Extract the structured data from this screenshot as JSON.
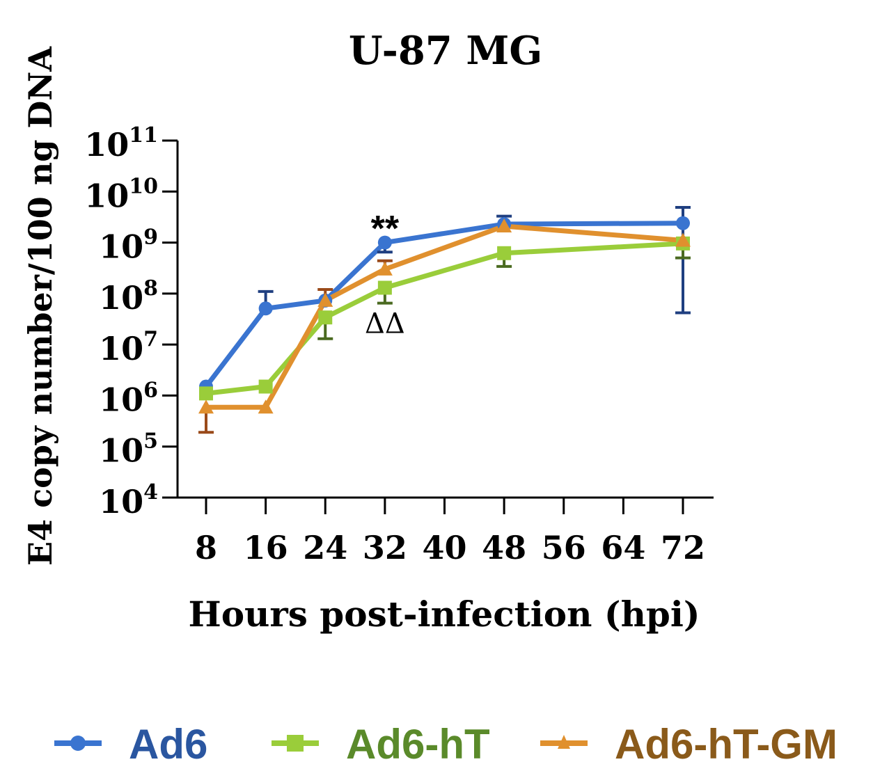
{
  "chart_data": {
    "type": "line",
    "title": "U-87 MG",
    "xlabel": "Hours post-infection (hpi)",
    "ylabel": "E4 copy number/100 ng DNA",
    "yscale": "log",
    "ylim": [
      10000,
      100000000000
    ],
    "xlim": [
      8,
      72
    ],
    "xticks": [
      8,
      16,
      24,
      32,
      40,
      48,
      56,
      64,
      72
    ],
    "yticks": [
      {
        "base": "10",
        "exp": "4"
      },
      {
        "base": "10",
        "exp": "5"
      },
      {
        "base": "10",
        "exp": "6"
      },
      {
        "base": "10",
        "exp": "7"
      },
      {
        "base": "10",
        "exp": "8"
      },
      {
        "base": "10",
        "exp": "9"
      },
      {
        "base": "10",
        "exp": "10"
      },
      {
        "base": "10",
        "exp": "11"
      }
    ],
    "grid": false,
    "legend_position": "bottom",
    "x": [
      8,
      16,
      24,
      32,
      48,
      72
    ],
    "series": [
      {
        "name": "Ad6",
        "color": "#3a74d0",
        "text_color": "#2a56a0",
        "marker": "circle",
        "values": [
          1500000.0,
          51000000.0,
          73000000.0,
          1000000000.0,
          2300000000.0,
          2400000000.0
        ],
        "err_low": [
          null,
          null,
          null,
          650000000.0,
          null,
          42000000.0
        ],
        "err_high": [
          null,
          110000000.0,
          null,
          null,
          3300000000.0,
          4900000000.0
        ]
      },
      {
        "name": "Ad6-hT",
        "color": "#9acd3a",
        "text_color": "#5a8a2a",
        "marker": "square",
        "values": [
          1100000.0,
          1500000.0,
          34000000.0,
          130000000.0,
          620000000.0,
          960000000.0
        ],
        "err_low": [
          null,
          null,
          13000000.0,
          65000000.0,
          340000000.0,
          500000000.0
        ],
        "err_high": [
          null,
          null,
          null,
          null,
          null,
          null
        ]
      },
      {
        "name": "Ad6-hT-GM",
        "color": "#e0902e",
        "text_color": "#8a5a1a",
        "marker": "triangle",
        "values": [
          590000.0,
          590000.0,
          73000000.0,
          300000000.0,
          2100000000.0,
          1100000000.0
        ],
        "err_low": [
          190000.0,
          null,
          null,
          null,
          null,
          null
        ],
        "err_high": [
          null,
          null,
          120000000.0,
          440000000.0,
          null,
          null
        ]
      }
    ],
    "annotations": [
      {
        "text": "**",
        "x": 32,
        "y": 2600000000.0
      },
      {
        "text": "ΔΔ",
        "x": 32,
        "y": 23000000.0
      }
    ]
  }
}
